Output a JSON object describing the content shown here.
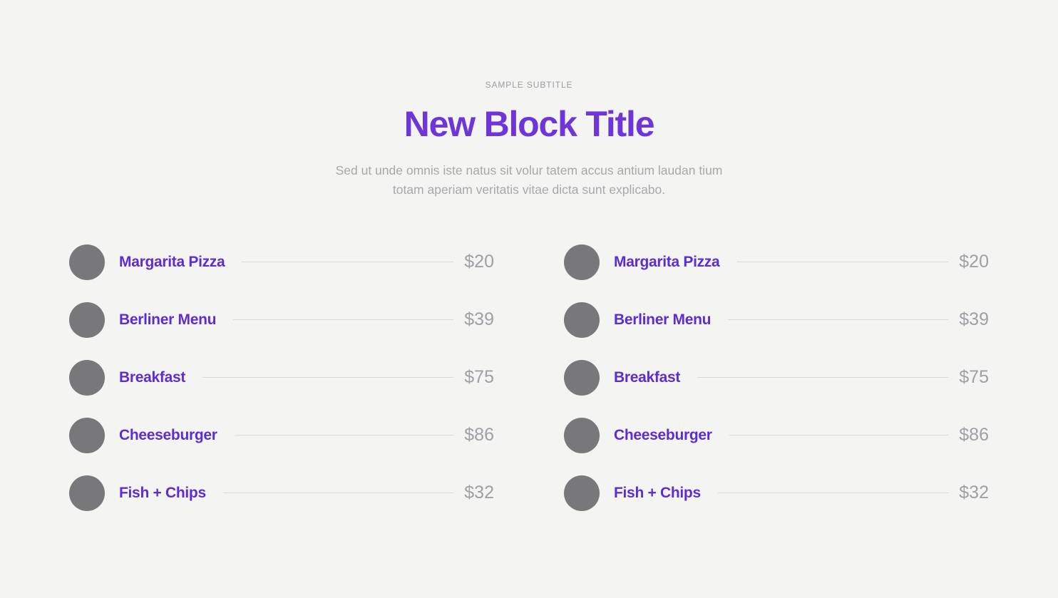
{
  "header": {
    "subtitle": "SAMPLE SUBTITLE",
    "title": "New Block Title",
    "description": "Sed ut unde omnis iste natus sit volur tatem accus antium laudan tium totam aperiam veritatis vitae dicta sunt explicabo."
  },
  "menu": {
    "columns": [
      {
        "items": [
          {
            "name": "Margarita Pizza",
            "price": "$20"
          },
          {
            "name": "Berliner Menu",
            "price": "$39"
          },
          {
            "name": "Breakfast",
            "price": "$75"
          },
          {
            "name": "Cheeseburger",
            "price": "$86"
          },
          {
            "name": "Fish + Chips",
            "price": "$32"
          }
        ]
      },
      {
        "items": [
          {
            "name": "Margarita Pizza",
            "price": "$20"
          },
          {
            "name": "Berliner Menu",
            "price": "$39"
          },
          {
            "name": "Breakfast",
            "price": "$75"
          },
          {
            "name": "Cheeseburger",
            "price": "$86"
          },
          {
            "name": "Fish + Chips",
            "price": "$32"
          }
        ]
      }
    ]
  },
  "colors": {
    "background": "#F4F4F2",
    "title_purple": "#6E36D9",
    "item_name_purple": "#5D2CD2",
    "subtitle_gray": "#9B9DA0",
    "description_gray": "#A7A8AB",
    "price_gray": "#9EA0A6",
    "circle_gray": "#78787A",
    "leader_line_gray": "#D9D9D9"
  }
}
